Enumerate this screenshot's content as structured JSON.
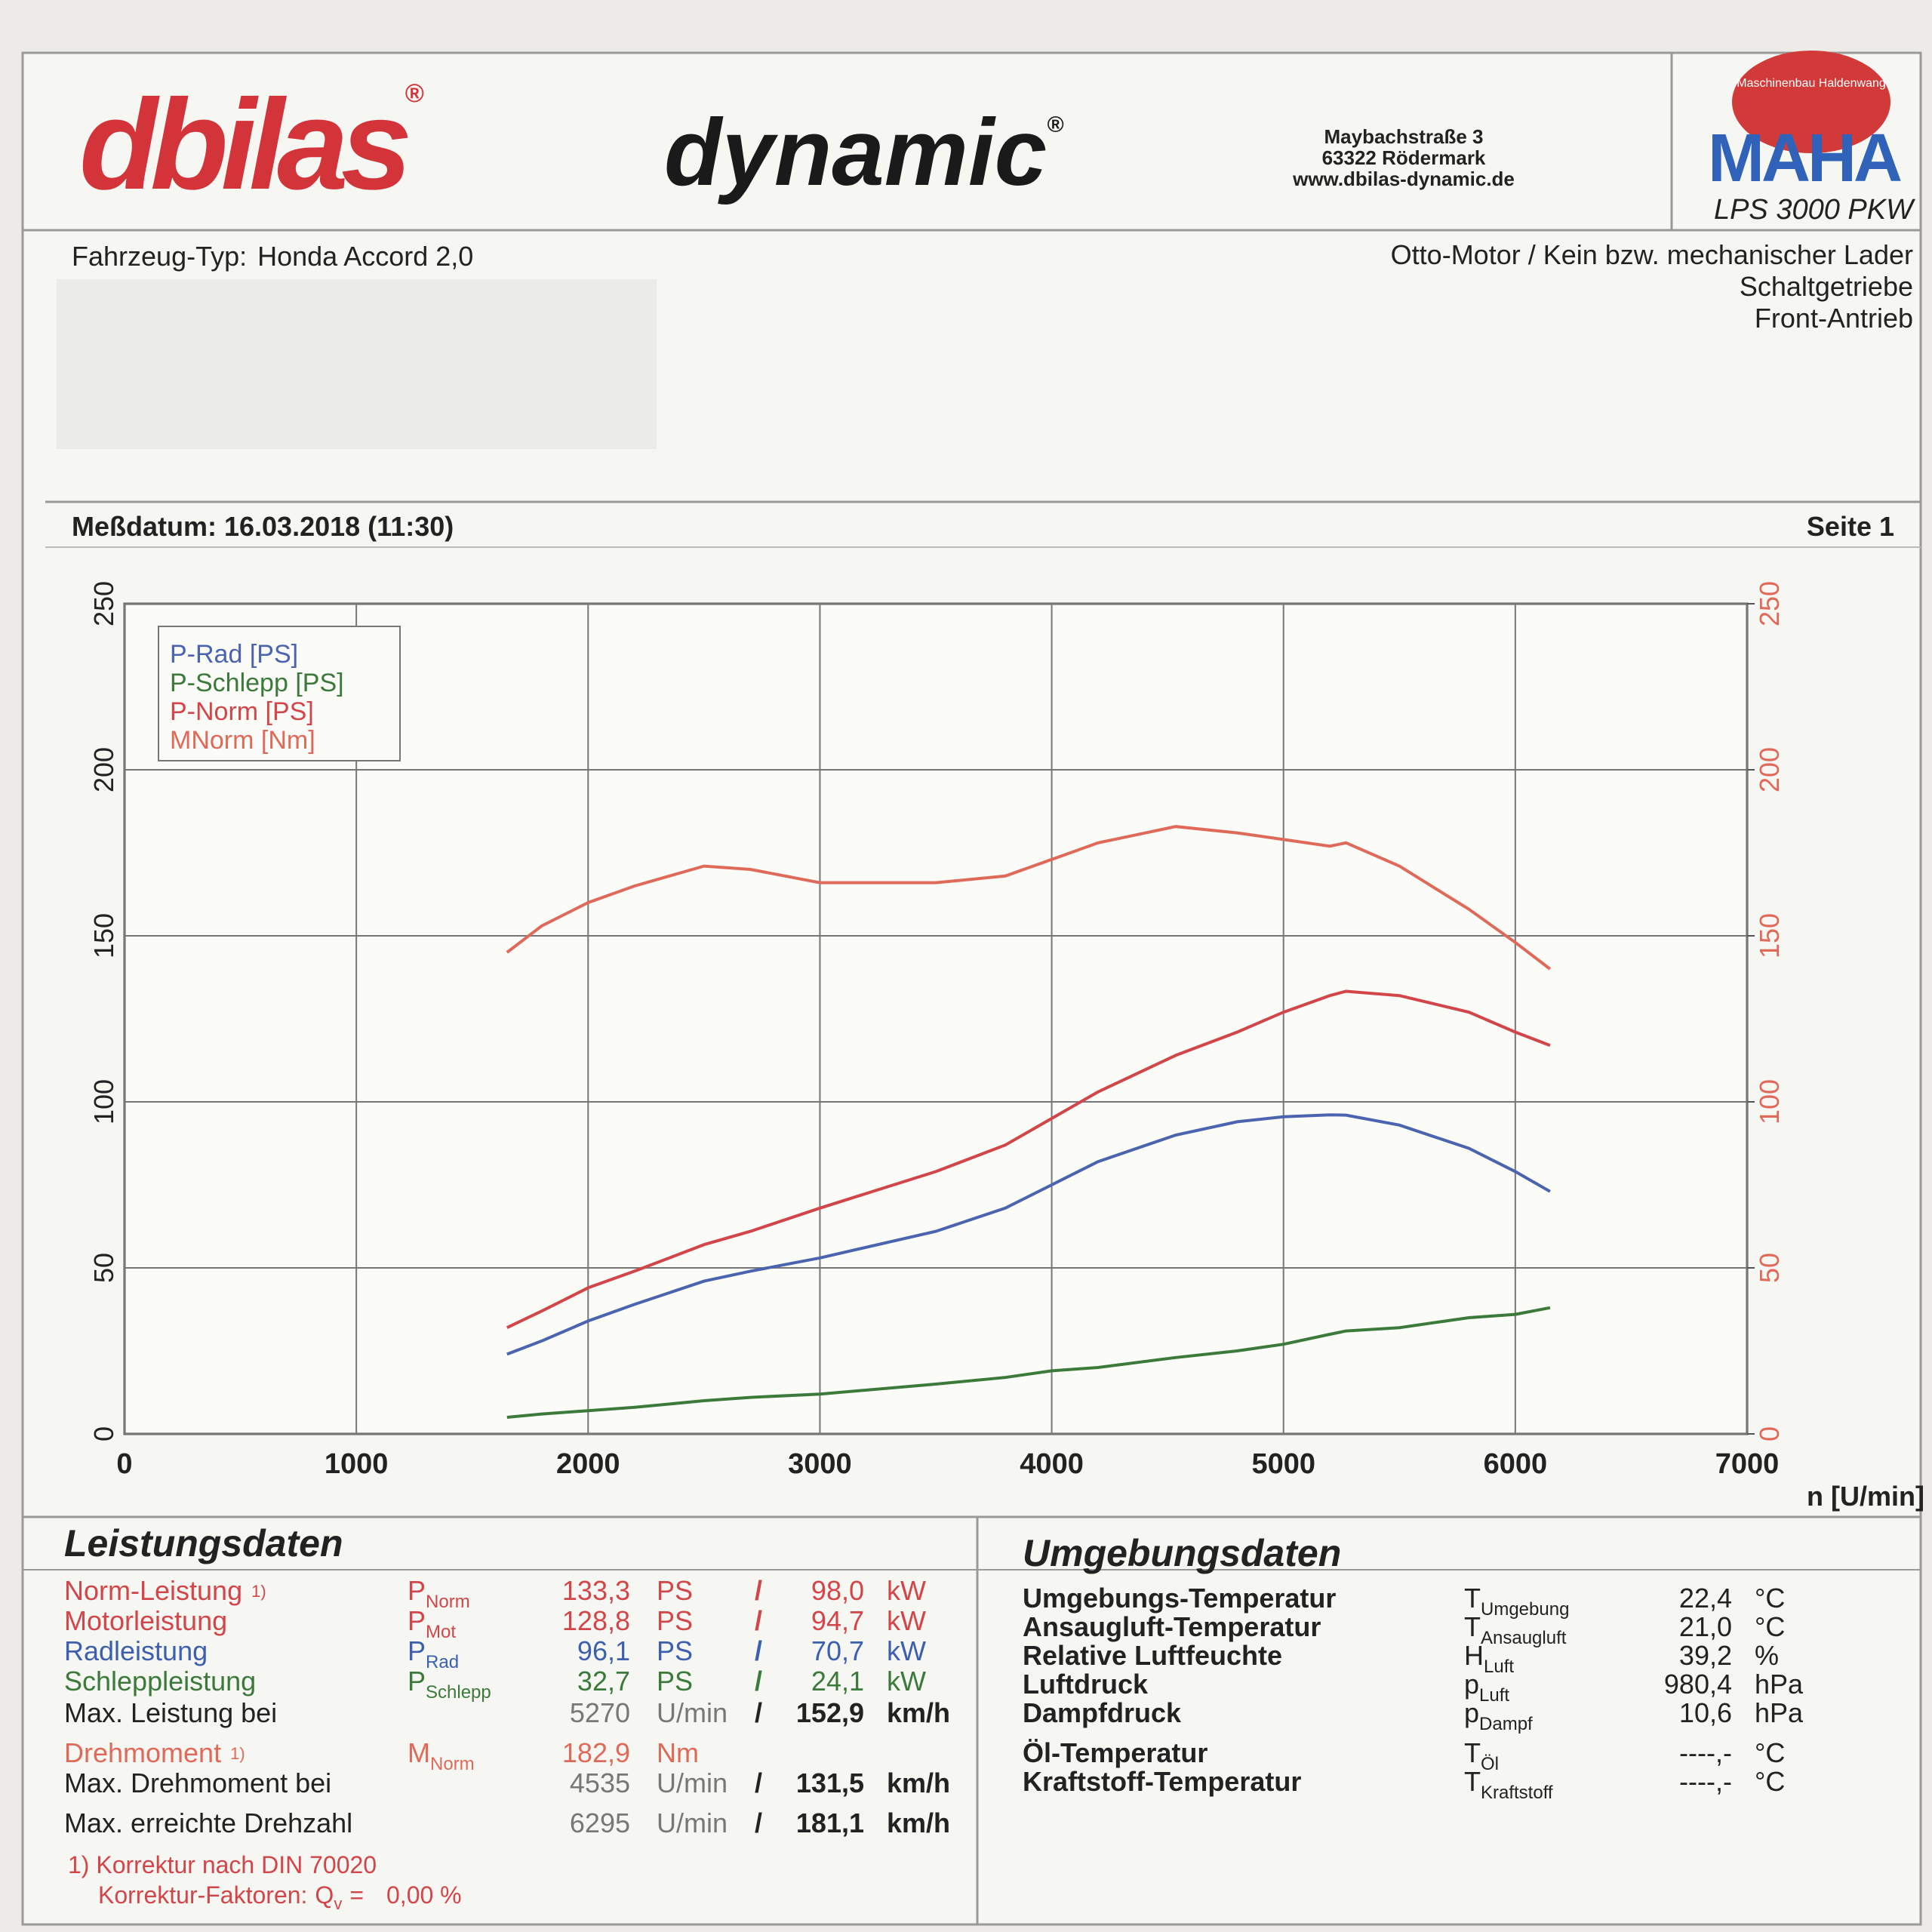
{
  "header": {
    "brand": "dbilas",
    "brand_mark": "®",
    "product": "dynamic",
    "product_mark": "®",
    "address": [
      "Maybachstraße 3",
      "63322 Rödermark",
      "www.dbilas-dynamic.de"
    ],
    "logo": "MAHA",
    "logo_ring": "Maschinenbau Haldenwang",
    "model": "LPS 3000 PKW"
  },
  "vehicle": {
    "label": "Fahrzeug-Typ:",
    "type": "Honda Accord 2,0",
    "specs": [
      "Otto-Motor / Kein bzw. mechanischer Lader",
      "Schaltgetriebe",
      "Front-Antrieb"
    ]
  },
  "measurement": {
    "date": "Meßdatum: 16.03.2018 (11:30)",
    "page": "Seite 1"
  },
  "chart_data": {
    "type": "line",
    "x": [
      1650,
      1800,
      2000,
      2200,
      2500,
      2700,
      3000,
      3500,
      3800,
      4000,
      4200,
      4535,
      4800,
      5000,
      5200,
      5270,
      5500,
      5800,
      6000,
      6150
    ],
    "series": [
      {
        "name": "P-Rad [PS]",
        "color": "#4a64b0",
        "values": [
          24,
          28,
          34,
          39,
          46,
          49,
          53,
          61,
          68,
          75,
          82,
          90,
          94,
          95.5,
          96.1,
          96,
          93,
          86,
          79,
          73
        ]
      },
      {
        "name": "P-Schlepp [PS]",
        "color": "#3c7a3c",
        "values": [
          5,
          6,
          7,
          8,
          10,
          11,
          12,
          15,
          17,
          19,
          20,
          23,
          25,
          27,
          30,
          31,
          32,
          35,
          36,
          38
        ]
      },
      {
        "name": "P-Norm [PS]",
        "color": "#d2464a",
        "values": [
          32,
          37,
          44,
          49,
          57,
          61,
          68,
          79,
          87,
          95,
          103,
          114,
          121,
          127,
          132,
          133.3,
          132,
          127,
          121,
          117
        ]
      },
      {
        "name": "MNorm [Nm]",
        "color": "#e06a5a",
        "axis": "y2",
        "values": [
          145,
          153,
          160,
          165,
          171,
          170,
          166,
          166,
          168,
          173,
          178,
          182.9,
          181,
          179,
          177,
          178,
          171,
          158,
          148,
          140
        ]
      }
    ],
    "xlim": [
      0,
      7000
    ],
    "xticks": [
      0,
      1000,
      2000,
      3000,
      4000,
      5000,
      6000,
      7000
    ],
    "ylim": [
      0,
      250
    ],
    "yticks": [
      0,
      50,
      100,
      150,
      200,
      250
    ],
    "y2lim": [
      0,
      250
    ],
    "y2ticks": [
      0,
      50,
      100,
      150,
      200,
      250
    ],
    "xlabel": "n [U/min]",
    "grid": true,
    "legend": "upper left"
  },
  "performance": {
    "title": "Leistungsdaten",
    "rows": [
      {
        "label": "Norm-Leistung",
        "note": "1)",
        "symbol": "P",
        "sub": "Norm",
        "value": "133,3",
        "unit": "PS",
        "sep": "/",
        "value2": "98,0",
        "unit2": "kW",
        "color": "#d2464a"
      },
      {
        "label": "Motorleistung",
        "symbol": "P",
        "sub": "Mot",
        "value": "128,8",
        "unit": "PS",
        "sep": "/",
        "value2": "94,7",
        "unit2": "kW",
        "color": "#d2464a"
      },
      {
        "label": "Radleistung",
        "symbol": "P",
        "sub": "Rad",
        "value": "96,1",
        "unit": "PS",
        "sep": "/",
        "value2": "70,7",
        "unit2": "kW",
        "color": "#3d5fb0"
      },
      {
        "label": "Schleppleistung",
        "symbol": "P",
        "sub": "Schlepp",
        "value": "32,7",
        "unit": "PS",
        "sep": "/",
        "value2": "24,1",
        "unit2": "kW",
        "color": "#3c7a3c"
      },
      {
        "label": "Max. Leistung bei",
        "value": "5270",
        "unit": "U/min",
        "sep": "/",
        "value2": "152,9",
        "unit2": "km/h",
        "color": "#222222"
      },
      {
        "label": "Drehmoment",
        "note": "1)",
        "symbol": "M",
        "sub": "Norm",
        "value": "182,9",
        "unit": "Nm",
        "color": "#e06a5a"
      },
      {
        "label": "Max. Drehmoment bei",
        "value": "4535",
        "unit": "U/min",
        "sep": "/",
        "value2": "131,5",
        "unit2": "km/h",
        "color": "#222222"
      },
      {
        "label": "Max. erreichte Drehzahl",
        "value": "6295",
        "unit": "U/min",
        "sep": "/",
        "value2": "181,1",
        "unit2": "km/h",
        "color": "#222222"
      }
    ],
    "notes": [
      "1) Korrektur nach DIN 70020"
    ],
    "factor": {
      "label": "Korrektur-Faktoren:",
      "symbol": "Q",
      "sub": "v",
      "eq": "=",
      "value": "0,00 %"
    }
  },
  "environment": {
    "title": "Umgebungsdaten",
    "rows": [
      {
        "label": "Umgebungs-Temperatur",
        "symbol": "T",
        "sub": "Umgebung",
        "value": "22,4",
        "unit": "°C"
      },
      {
        "label": "Ansaugluft-Temperatur",
        "symbol": "T",
        "sub": "Ansaugluft",
        "value": "21,0",
        "unit": "°C"
      },
      {
        "label": "Relative Luftfeuchte",
        "symbol": "H",
        "sub": "Luft",
        "value": "39,2",
        "unit": "%"
      },
      {
        "label": "Luftdruck",
        "symbol": "p",
        "sub": "Luft",
        "value": "980,4",
        "unit": "hPa"
      },
      {
        "label": "Dampfdruck",
        "symbol": "p",
        "sub": "Dampf",
        "value": "10,6",
        "unit": "hPa"
      },
      {
        "label": "Öl-Temperatur",
        "symbol": "T",
        "sub": "Öl",
        "value": "----,-",
        "unit": "°C"
      },
      {
        "label": "Kraftstoff-Temperatur",
        "symbol": "T",
        "sub": "Kraftstoff",
        "value": "----,-",
        "unit": "°C"
      }
    ]
  }
}
